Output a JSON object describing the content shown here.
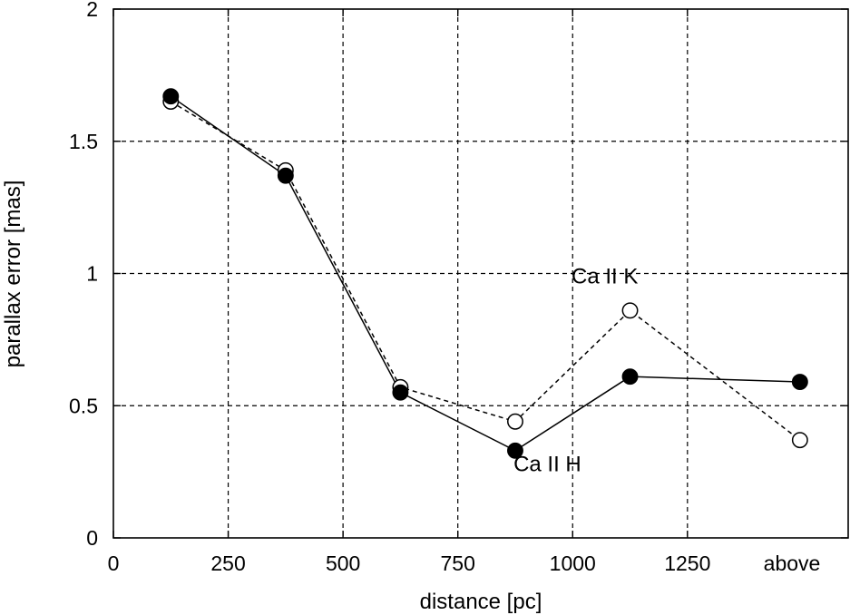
{
  "chart_data": {
    "type": "line",
    "title": "",
    "xlabel": "distance [pc]",
    "ylabel": "parallax error [mas]",
    "xlim": [
      0,
      1600
    ],
    "ylim": [
      0,
      2
    ],
    "grid": true,
    "x_ticks": [
      {
        "value": 0,
        "label": "0"
      },
      {
        "value": 250,
        "label": "250"
      },
      {
        "value": 500,
        "label": "500"
      },
      {
        "value": 750,
        "label": "750"
      },
      {
        "value": 1000,
        "label": "1000"
      },
      {
        "value": 1250,
        "label": "1250"
      },
      {
        "value": 1500,
        "label": "above"
      }
    ],
    "y_ticks": [
      {
        "value": 0,
        "label": "0"
      },
      {
        "value": 0.5,
        "label": "0.5"
      },
      {
        "value": 1,
        "label": "1"
      },
      {
        "value": 1.5,
        "label": "1.5"
      },
      {
        "value": 2,
        "label": "2"
      }
    ],
    "series": [
      {
        "name": "Ca II H",
        "marker": "filled-circle",
        "line": "solid",
        "x": [
          125,
          375,
          625,
          875,
          1125,
          1495
        ],
        "y": [
          1.67,
          1.37,
          0.55,
          0.33,
          0.61,
          0.59
        ]
      },
      {
        "name": "Ca II K",
        "marker": "open-circle",
        "line": "dashed",
        "x": [
          125,
          375,
          625,
          875,
          1125,
          1495
        ],
        "y": [
          1.65,
          1.39,
          0.57,
          0.44,
          0.86,
          0.37
        ]
      }
    ],
    "annotations": [
      {
        "text": "Ca II K",
        "x": 1070,
        "y": 0.99
      },
      {
        "text": "Ca II H",
        "x": 945,
        "y": 0.28
      }
    ]
  }
}
